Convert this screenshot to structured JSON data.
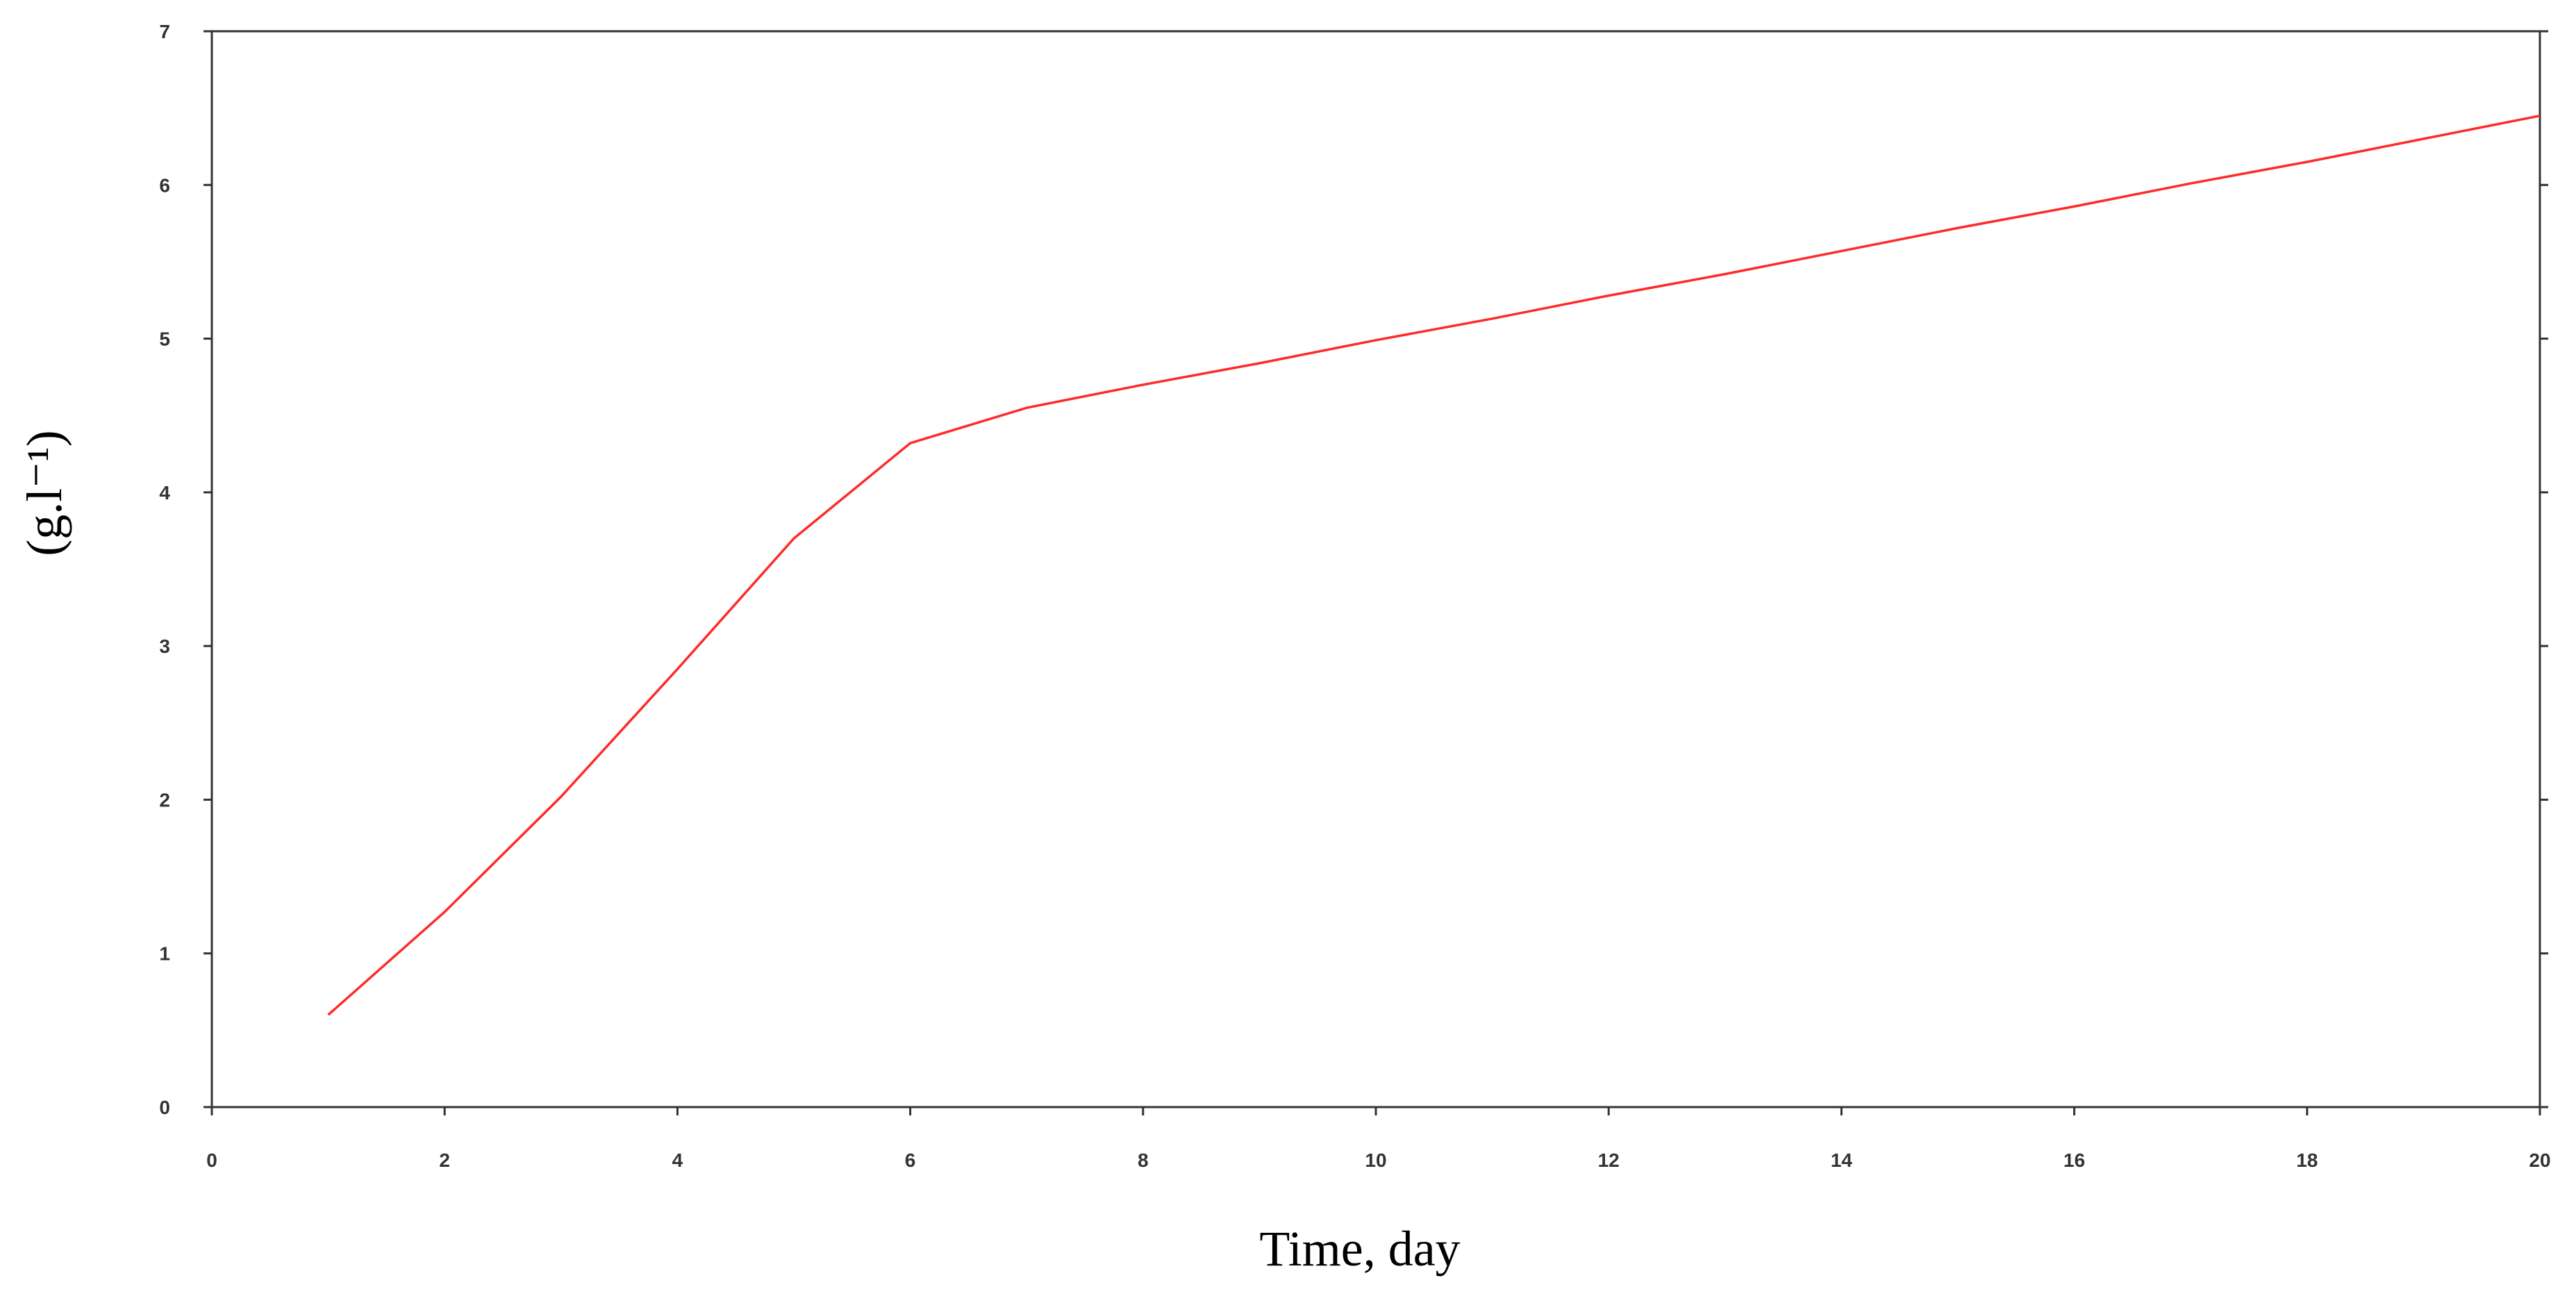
{
  "chart_data": {
    "type": "line",
    "x_label": "Time, day",
    "y_label": "(g.l⁻¹)",
    "x": [
      1,
      2,
      3,
      4,
      5,
      6,
      7,
      8,
      9,
      10,
      11,
      12,
      13,
      14,
      15,
      16,
      17,
      18,
      19,
      20
    ],
    "series": [
      {
        "color": "#ff2a2a",
        "values": [
          0.6,
          1.27,
          2.02,
          2.85,
          3.7,
          4.32,
          4.55,
          4.7,
          4.84,
          4.99,
          5.13,
          5.28,
          5.42,
          5.57,
          5.72,
          5.86,
          6.01,
          6.15,
          6.3,
          6.45
        ]
      }
    ],
    "xlim": [
      0,
      20
    ],
    "xticks": [
      0,
      2,
      4,
      6,
      8,
      10,
      12,
      14,
      16,
      18,
      20
    ],
    "ylim": [
      0,
      7
    ],
    "yticks": [
      0,
      1,
      2,
      3,
      4,
      5,
      6,
      7
    ],
    "grid": false
  }
}
